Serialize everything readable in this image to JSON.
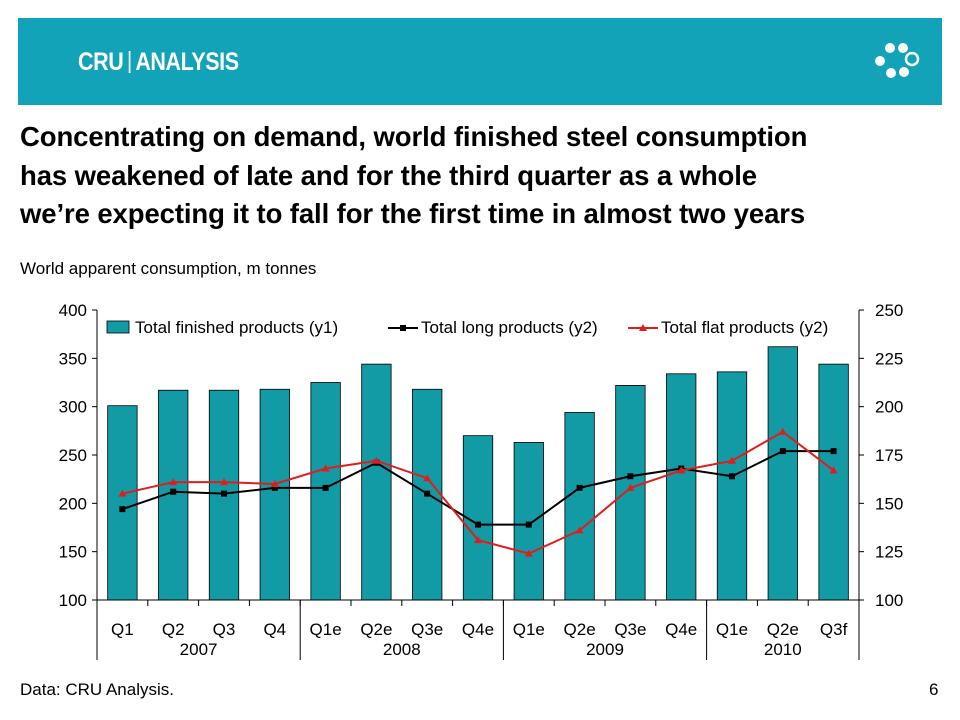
{
  "header": {
    "brand_left": "CRU",
    "brand_right": "ANALYSIS",
    "logo_icon": "ring-of-dots-logo",
    "banner_color": "#12a3b8"
  },
  "headline": {
    "line1": "Concentrating on demand, world finished steel consumption",
    "line2": "has weakened of late and for the third quarter as a whole",
    "line3": "we’re expecting it to fall for the first time in almost two years"
  },
  "subtitle": "World apparent consumption, m tonnes",
  "chart_data": {
    "type": "bar",
    "categories": [
      "Q1",
      "Q2",
      "Q3",
      "Q4",
      "Q1e",
      "Q2e",
      "Q3e",
      "Q4e",
      "Q1e",
      "Q2e",
      "Q3e",
      "Q4e",
      "Q1e",
      "Q2e",
      "Q3f"
    ],
    "year_labels": [
      {
        "label": "2007",
        "start": 0,
        "end": 3
      },
      {
        "label": "2008",
        "start": 4,
        "end": 7
      },
      {
        "label": "2009",
        "start": 8,
        "end": 11
      },
      {
        "label": "2010",
        "start": 12,
        "end": 14
      }
    ],
    "series": [
      {
        "name": "Total finished products (y1)",
        "type": "bar",
        "axis": "y1",
        "color": "#139ba5",
        "values": [
          301,
          317,
          317,
          318,
          325,
          344,
          318,
          270,
          263,
          294,
          322,
          334,
          336,
          362,
          344
        ]
      },
      {
        "name": "Total long products (y2)",
        "type": "line",
        "axis": "y2",
        "color": "#000000",
        "marker": "square",
        "values": [
          147,
          156,
          155,
          158,
          158,
          171,
          155,
          139,
          139,
          158,
          164,
          168,
          164,
          177,
          177
        ]
      },
      {
        "name": "Total flat products (y2)",
        "type": "line",
        "axis": "y2",
        "color": "#e21c1c",
        "marker": "triangle",
        "values": [
          155,
          161,
          161,
          160,
          168,
          172,
          163,
          131,
          124,
          136,
          158,
          167,
          172,
          187,
          167
        ]
      }
    ],
    "y1": {
      "ylim": [
        100,
        400
      ],
      "ticks": [
        "100",
        "150",
        "200",
        "250",
        "300",
        "350",
        "400"
      ]
    },
    "y2": {
      "ylim": [
        100,
        250
      ],
      "ticks": [
        "100",
        "125",
        "150",
        "175",
        "200",
        "225",
        "250"
      ]
    },
    "legend_position": "top-inside",
    "grid": false
  },
  "footer": {
    "source": "Data: CRU Analysis.",
    "page_number": "6"
  }
}
